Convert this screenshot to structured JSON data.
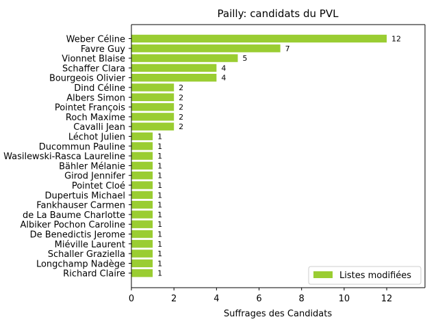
{
  "chart_data": {
    "type": "bar",
    "orientation": "horizontal",
    "title": "Pailly: candidats du PVL",
    "xlabel": "Suffrages des Candidats",
    "ylabel": "",
    "xlim": [
      0,
      13.8
    ],
    "xticks": [
      0,
      2,
      4,
      6,
      8,
      10,
      12
    ],
    "grid": false,
    "legend_position": "lower-right",
    "bar_color": "#9acd32",
    "categories": [
      "Weber Céline",
      "Favre Guy",
      "Vionnet Blaise",
      "Schaffer Clara",
      "Bourgeois Olivier",
      "Dind Céline",
      "Albers Simon",
      "Pointet François",
      "Roch Maxime",
      "Cavalli Jean",
      "Léchot Julien",
      "Ducommun Pauline",
      "Wasilewski-Rasca Laureline",
      "Bähler Mélanie",
      "Girod Jennifer",
      "Pointet Cloé",
      "Dupertuis Michael",
      "Fankhauser Carmen",
      "de La Baume Charlotte",
      "Albiker Pochon Caroline",
      "De Benedictis Jerome",
      "Miéville Laurent",
      "Schaller Graziella",
      "Longchamp Nadège",
      "Richard Claire"
    ],
    "series": [
      {
        "name": "Listes modifiées",
        "values": [
          12,
          7,
          5,
          4,
          4,
          2,
          2,
          2,
          2,
          2,
          1,
          1,
          1,
          1,
          1,
          1,
          1,
          1,
          1,
          1,
          1,
          1,
          1,
          1,
          1
        ]
      }
    ]
  }
}
